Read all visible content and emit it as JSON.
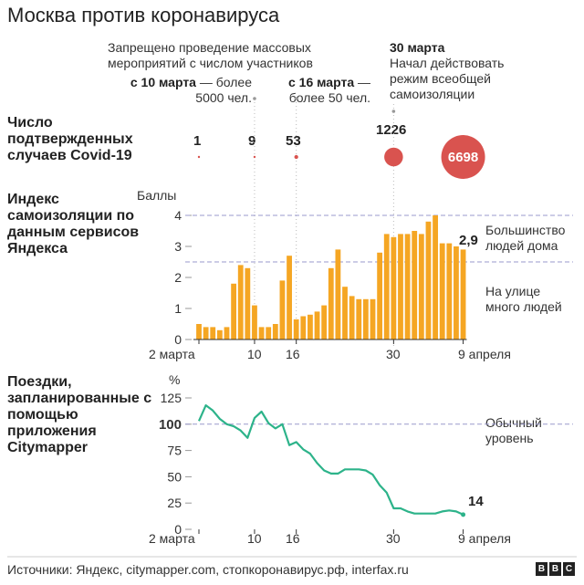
{
  "title": "Москва против коронавируса",
  "annotations": {
    "ban_text_1": "Запрещено проведение массовых",
    "ban_text_2": "мероприятий с числом участников",
    "march10_date": "с 10 марта",
    "march10_text_1": " — более",
    "march10_text_2": "5000 чел.",
    "march16_date": "с 16 марта",
    "march16_text_1": " —",
    "march16_text_2": "более 50 чел.",
    "march30_date": "30 марта",
    "march30_text_1": "Начал действовать",
    "march30_text_2": "режим всеобщей",
    "march30_text_3": "самоизоляции"
  },
  "sections": {
    "cases_label": "Число подтвержденных случаев Covid-19",
    "index_label": "Индекс самоизоляции по данным сервисов Яндекса",
    "trips_label": "Поездки, запланированные с помощью приложения Citymapper"
  },
  "cases": [
    {
      "label": "1",
      "value": 1
    },
    {
      "label": "9",
      "value": 9
    },
    {
      "label": "53",
      "value": 53
    },
    {
      "label": "1226",
      "value": 1226
    },
    {
      "label": "6698",
      "value": 6698
    }
  ],
  "index_chart": {
    "unit_label": "Баллы",
    "side_top_1": "Большинство",
    "side_top_2": "людей дома",
    "side_bottom_1": "На улице",
    "side_bottom_2": "много людей",
    "last_value_label": "2,9"
  },
  "trips_chart": {
    "unit_label": "%",
    "side_1": "Обычный",
    "side_2": "уровень",
    "last_value_label": "14"
  },
  "x_ticks": [
    "2 марта",
    "10",
    "16",
    "30",
    "9 апреля"
  ],
  "footer": "Источники: Яндекс, citymapper.com, стопкоронавирус.рф, interfax.ru",
  "logo": [
    "B",
    "B",
    "C"
  ],
  "colors": {
    "bar": "#F5A623",
    "line": "#2DB38A",
    "bubble": "#D9534F",
    "reference": "#9999CC"
  },
  "chart_data": [
    {
      "type": "bar",
      "title": "Индекс самоизоляции по данным сервисов Яндекса",
      "ylabel": "Баллы",
      "ylim": [
        0,
        4
      ],
      "yticks": [
        0,
        1,
        2,
        3,
        4
      ],
      "reference_lines": [
        2.5,
        4
      ],
      "x_start": "2 марта",
      "x_end": "9 апреля",
      "values": [
        0.5,
        0.4,
        0.4,
        0.3,
        0.4,
        1.8,
        2.4,
        2.3,
        1.1,
        0.4,
        0.4,
        0.5,
        1.9,
        2.7,
        0.65,
        0.75,
        0.8,
        0.9,
        1.1,
        2.3,
        2.9,
        1.7,
        1.4,
        1.3,
        1.3,
        1.3,
        2.8,
        3.4,
        3.3,
        3.4,
        3.4,
        3.5,
        3.4,
        3.8,
        4.0,
        3.1,
        3.1,
        3.0,
        2.9
      ]
    },
    {
      "type": "line",
      "title": "Поездки, запланированные с помощью приложения Citymapper",
      "ylabel": "%",
      "ylim": [
        0,
        125
      ],
      "yticks": [
        0,
        25,
        50,
        75,
        100,
        125
      ],
      "reference_lines": [
        100
      ],
      "x_start": "2 марта",
      "x_end": "9 апреля",
      "values": [
        103,
        118,
        113,
        105,
        100,
        98,
        94,
        87,
        106,
        112,
        101,
        96,
        100,
        80,
        83,
        76,
        72,
        63,
        56,
        53,
        53,
        57,
        57,
        57,
        56,
        52,
        42,
        35,
        20,
        20,
        17,
        15,
        15,
        15,
        15,
        17,
        18,
        17,
        14
      ]
    }
  ]
}
